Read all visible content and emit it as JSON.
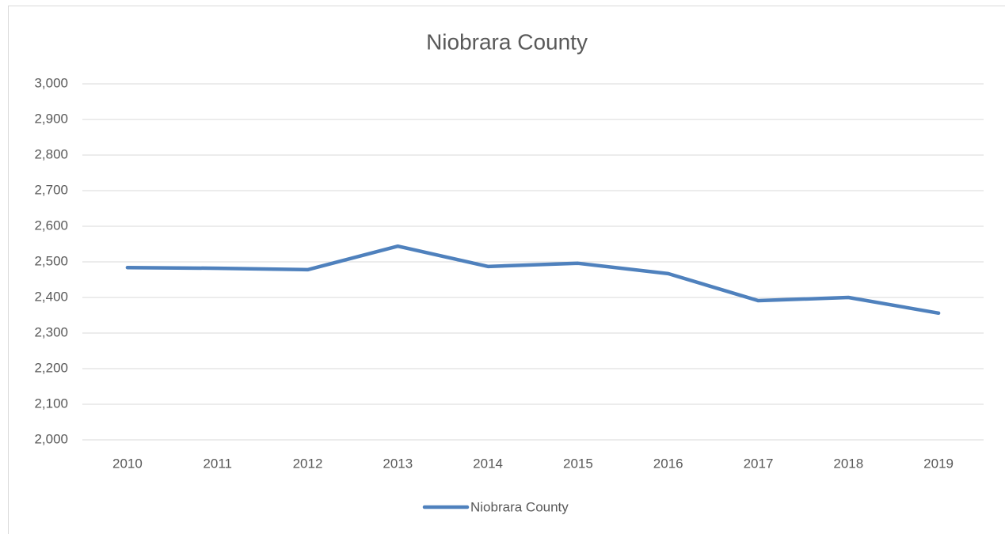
{
  "chart_data": {
    "type": "line",
    "title": "Niobrara County",
    "categories": [
      "2010",
      "2011",
      "2012",
      "2013",
      "2014",
      "2015",
      "2016",
      "2017",
      "2018",
      "2019"
    ],
    "series": [
      {
        "name": "Niobrara County",
        "color": "#4f81bd",
        "values": [
          2484,
          2482,
          2478,
          2544,
          2487,
          2496,
          2467,
          2391,
          2400,
          2356
        ]
      }
    ],
    "ylim": [
      2000,
      3000
    ],
    "yticks": [
      {
        "value": 2000,
        "label": "2,000"
      },
      {
        "value": 2100,
        "label": "2,100"
      },
      {
        "value": 2200,
        "label": "2,200"
      },
      {
        "value": 2300,
        "label": "2,300"
      },
      {
        "value": 2400,
        "label": "2,400"
      },
      {
        "value": 2500,
        "label": "2,500"
      },
      {
        "value": 2600,
        "label": "2,600"
      },
      {
        "value": 2700,
        "label": "2,700"
      },
      {
        "value": 2800,
        "label": "2,800"
      },
      {
        "value": 2900,
        "label": "2,900"
      },
      {
        "value": 3000,
        "label": "3,000"
      }
    ],
    "grid": true,
    "legend": "bottom"
  }
}
